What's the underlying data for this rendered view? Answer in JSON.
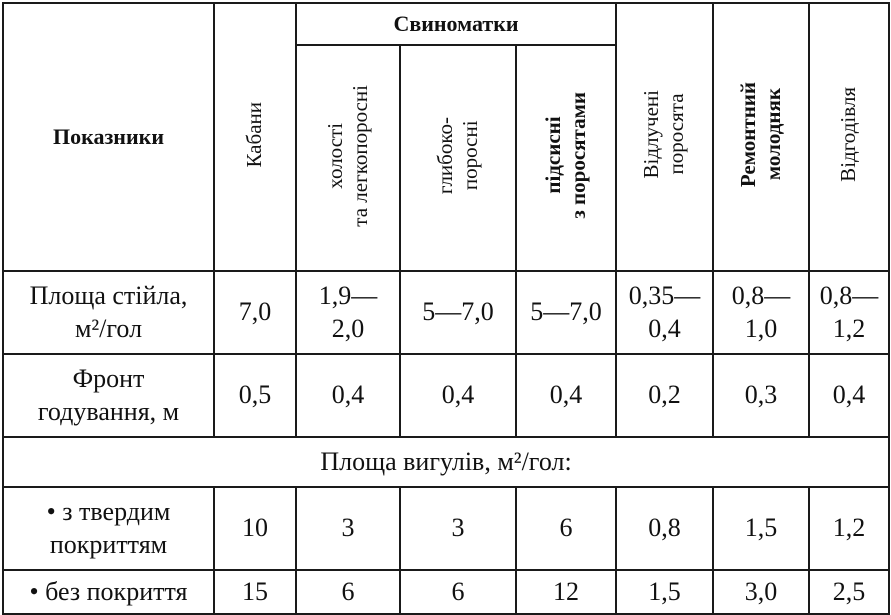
{
  "table": {
    "corner_label": "Показники",
    "group_label": "Свиноматки",
    "columns": {
      "boars": "Кабани",
      "sows_single_lines": [
        "холості",
        "та легкопоросні"
      ],
      "sows_deep_lines": [
        "глибоко-",
        "поросні"
      ],
      "sows_nursing_lines": [
        "підсисні",
        "з поросятами"
      ],
      "weaned_lines": [
        "Відлучені",
        "поросята"
      ],
      "replacement_lines": [
        "Ремонтний",
        "молодняк"
      ],
      "fattening": "Відгодівля"
    },
    "rows": [
      {
        "label_lines": [
          "Площа стійла,",
          "м²/гол"
        ],
        "values": [
          [
            "7,0"
          ],
          [
            "1,9—",
            "2,0"
          ],
          [
            "5—7,0"
          ],
          [
            "5—7,0"
          ],
          [
            "0,35—",
            "0,4"
          ],
          [
            "0,8—",
            "1,0"
          ],
          [
            "0,8—",
            "1,2"
          ]
        ]
      },
      {
        "label_lines": [
          "Фронт",
          "годування, м"
        ],
        "values": [
          [
            "0,5"
          ],
          [
            "0,4"
          ],
          [
            "0,4"
          ],
          [
            "0,4"
          ],
          [
            "0,2"
          ],
          [
            "0,3"
          ],
          [
            "0,4"
          ]
        ]
      }
    ],
    "subheader": "Площа вигулів, м²/гол:",
    "walk_rows": [
      {
        "label_lines": [
          "• з твердим",
          "покриттям"
        ],
        "values": [
          "10",
          "3",
          "3",
          "6",
          "0,8",
          "1,5",
          "1,2"
        ]
      },
      {
        "label_lines": [
          "• без покриття"
        ],
        "values": [
          "15",
          "6",
          "6",
          "12",
          "1,5",
          "3,0",
          "2,5"
        ]
      }
    ]
  }
}
